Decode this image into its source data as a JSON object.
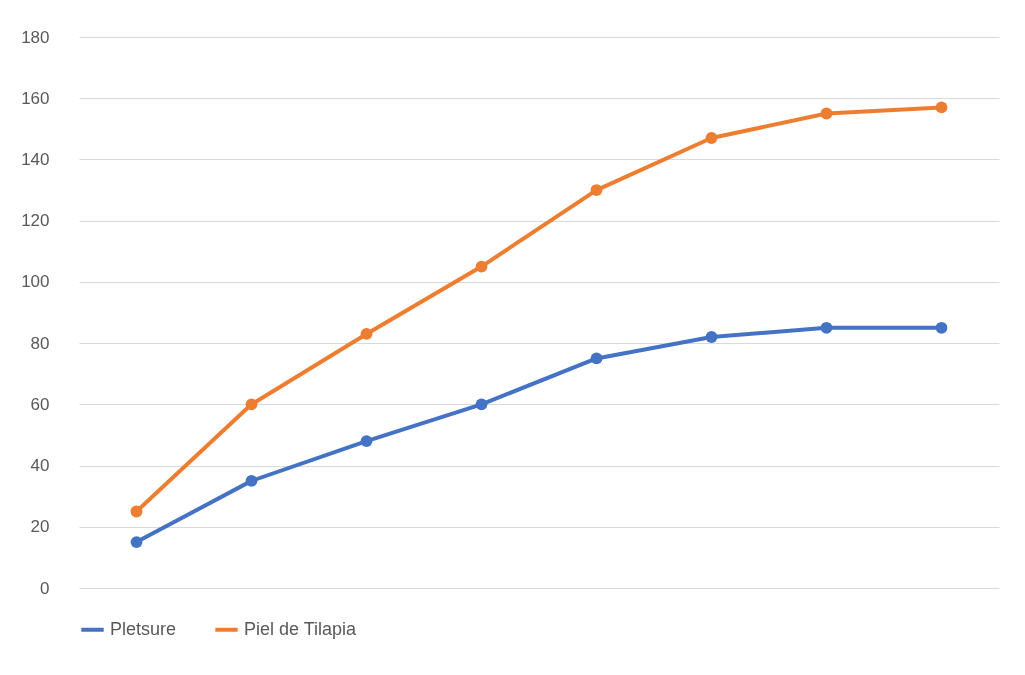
{
  "chart_data": {
    "type": "line",
    "categories": [
      null,
      null,
      null,
      null,
      null,
      null,
      null,
      null
    ],
    "series": [
      {
        "name": "Pletsure",
        "color": "#4472c4",
        "values": [
          15,
          35,
          48,
          60,
          75,
          82,
          85,
          85
        ]
      },
      {
        "name": "Piel de Tilapia",
        "color": "#ed7d31",
        "values": [
          25,
          60,
          83,
          105,
          130,
          147,
          155,
          157
        ]
      }
    ],
    "ylim": [
      0,
      180
    ],
    "yticks": [
      0,
      20,
      40,
      60,
      80,
      100,
      120,
      140,
      160,
      180
    ],
    "grid": "y",
    "legend": "bottom",
    "marker": "circle",
    "line_style": "solid",
    "tick_labels": "y"
  }
}
